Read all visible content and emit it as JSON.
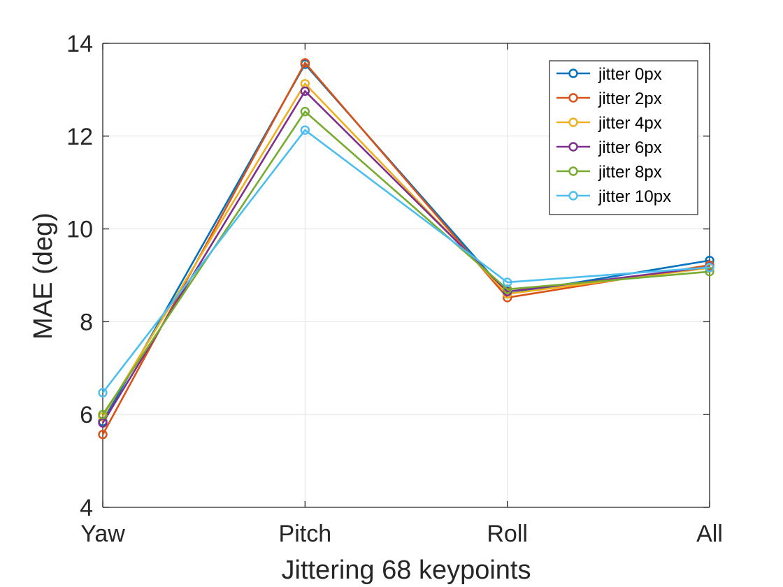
{
  "chart_data": {
    "type": "line",
    "title": "",
    "xlabel": "Jittering 68 keypoints",
    "ylabel": "MAE (deg)",
    "categories": [
      "Yaw",
      "Pitch",
      "Roll",
      "All"
    ],
    "ylim": [
      4,
      14
    ],
    "yticks": [
      4,
      6,
      8,
      10,
      12,
      14
    ],
    "grid": true,
    "legend_position": "top-right",
    "series": [
      {
        "name": "jitter 0px",
        "color": "#0072BD",
        "values": [
          5.85,
          13.55,
          8.6,
          9.32
        ]
      },
      {
        "name": "jitter 2px",
        "color": "#D95319",
        "values": [
          5.57,
          13.58,
          8.52,
          9.22
        ]
      },
      {
        "name": "jitter 4px",
        "color": "#EDB120",
        "values": [
          5.95,
          13.13,
          8.6,
          9.16
        ]
      },
      {
        "name": "jitter 6px",
        "color": "#7E2F8E",
        "values": [
          5.82,
          12.97,
          8.65,
          9.18
        ]
      },
      {
        "name": "jitter 8px",
        "color": "#77AC30",
        "values": [
          6.0,
          12.53,
          8.7,
          9.08
        ]
      },
      {
        "name": "jitter 10px",
        "color": "#4DBEEE",
        "values": [
          6.47,
          12.13,
          8.85,
          9.17
        ]
      }
    ]
  }
}
